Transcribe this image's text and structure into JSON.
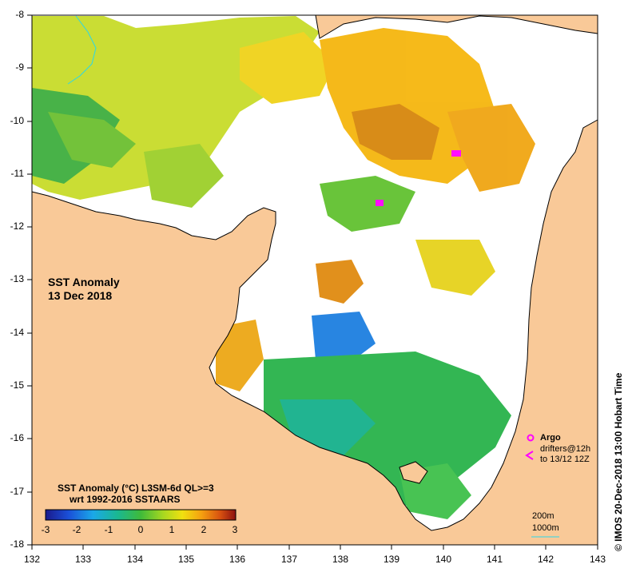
{
  "map": {
    "title_line1": "SST Anomaly",
    "title_line2": "13 Dec 2018",
    "colorbar_title_line1": "SST Anomaly (°C) L3SM-6d QL>=3",
    "colorbar_title_line2": "wrt 1992-2016 SSTAARS",
    "colorbar_ticks": [
      "-3",
      "-2",
      "-1",
      "0",
      "1",
      "2",
      "3"
    ],
    "colorbar_range": [
      -3,
      3
    ],
    "colors": {
      "land": "#f9c998",
      "ocean": "#ffffff",
      "coast": "#000000",
      "contour_200m": "#2ad7ea",
      "argo": "#ff00ff"
    },
    "lat_ticks": [
      "-8",
      "-9",
      "-10",
      "-11",
      "-12",
      "-13",
      "-14",
      "-15",
      "-16",
      "-17",
      "-18"
    ],
    "lon_ticks": [
      "132",
      "133",
      "134",
      "135",
      "136",
      "137",
      "138",
      "139",
      "140",
      "141",
      "142",
      "143"
    ],
    "lat_range": [
      -18,
      -8
    ],
    "lon_range": [
      132,
      143
    ],
    "legend": {
      "argo_label": "Argo",
      "drifters_label": "drifters@12h",
      "drifters_date": "to 13/12 12Z",
      "contour_200m": "200m",
      "contour_1000m": "1000m"
    },
    "credit": "© IMOS 20-Dec-2018 13:00 Hobart Time"
  }
}
